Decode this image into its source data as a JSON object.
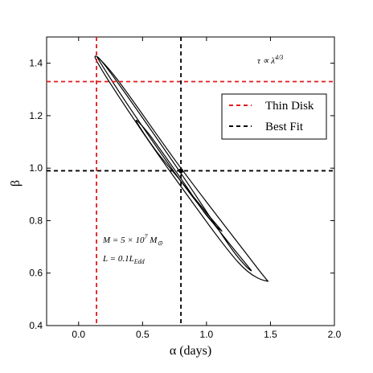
{
  "chart_data": {
    "type": "scatter",
    "xlabel": "α (days)",
    "ylabel": "β",
    "xlim": [
      -0.25,
      2.0
    ],
    "ylim": [
      0.4,
      1.5
    ],
    "xticks": [
      "0.0",
      "0.5",
      "1.0",
      "1.5",
      "2.0"
    ],
    "xtick_values": [
      0.0,
      0.5,
      1.0,
      1.5,
      2.0
    ],
    "yticks": [
      "0.4",
      "0.6",
      "0.8",
      "1.0",
      "1.2",
      "1.4"
    ],
    "ytick_values": [
      0.4,
      0.6,
      0.8,
      1.0,
      1.2,
      1.4
    ],
    "grid": false,
    "best_fit_point": {
      "x": 0.8,
      "y": 0.99
    },
    "reference_lines": [
      {
        "name": "Thin Disk",
        "color": "#e31a1c",
        "style": "dashed",
        "x": 0.14,
        "y": 1.33
      },
      {
        "name": "Best Fit",
        "color": "#000000",
        "style": "dashed",
        "x": 0.8,
        "y": 0.99
      }
    ],
    "contours": [
      {
        "level": "inner",
        "points": [
          [
            0.45,
            1.18
          ],
          [
            0.6,
            1.07
          ],
          [
            0.8,
            0.95
          ],
          [
            1.0,
            0.83
          ],
          [
            1.12,
            0.76
          ],
          [
            1.0,
            0.82
          ],
          [
            0.8,
            0.96
          ],
          [
            0.55,
            1.13
          ]
        ]
      },
      {
        "level": "middle",
        "points": [
          [
            0.15,
            1.42
          ],
          [
            0.4,
            1.23
          ],
          [
            0.8,
            0.95
          ],
          [
            1.15,
            0.73
          ],
          [
            1.35,
            0.61
          ],
          [
            1.2,
            0.69
          ],
          [
            0.8,
            0.98
          ],
          [
            0.3,
            1.33
          ]
        ]
      },
      {
        "level": "outer",
        "points": [
          [
            0.13,
            1.42
          ],
          [
            0.4,
            1.21
          ],
          [
            0.8,
            0.93
          ],
          [
            1.25,
            0.64
          ],
          [
            1.47,
            0.57
          ],
          [
            1.38,
            0.63
          ],
          [
            0.8,
            1.0
          ],
          [
            0.3,
            1.34
          ]
        ]
      }
    ],
    "legend": {
      "placement": "upper-right",
      "entries": [
        "Thin Disk",
        "Best Fit"
      ]
    },
    "annotations": {
      "tau": "τ ∝ λ^{4/3}",
      "mass": "M = 5 × 10^7 M_⊙",
      "lum": "L = 0.1L_Edd"
    }
  }
}
